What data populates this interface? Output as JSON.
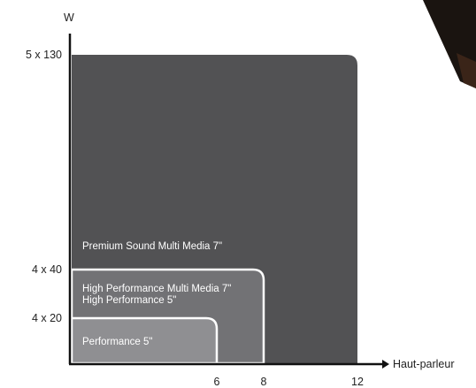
{
  "chart_data": {
    "type": "area",
    "ylabel": "W",
    "xlabel": "Haut-parleur",
    "x_ticks": [
      6,
      8,
      12
    ],
    "y_ticks": [
      {
        "label": "4 x 20",
        "value": 80
      },
      {
        "label": "4 x 40",
        "value": 160
      },
      {
        "label": "5 x 130",
        "value": 650
      }
    ],
    "xlim": [
      0,
      12
    ],
    "ylim": [
      0,
      650
    ],
    "grid": false,
    "series": [
      {
        "name": "Premium Sound Multi Media 7\"",
        "x_max": 12,
        "y_max": 650,
        "color": "#525254"
      },
      {
        "name": "High Performance Multi Media 7\"",
        "name2": "High Performance 5\"",
        "x_max": 8,
        "y_max": 160,
        "color": "#727275"
      },
      {
        "name": "Performance 5\"",
        "x_max": 6,
        "y_max": 80,
        "color": "#8f8f92"
      }
    ]
  }
}
